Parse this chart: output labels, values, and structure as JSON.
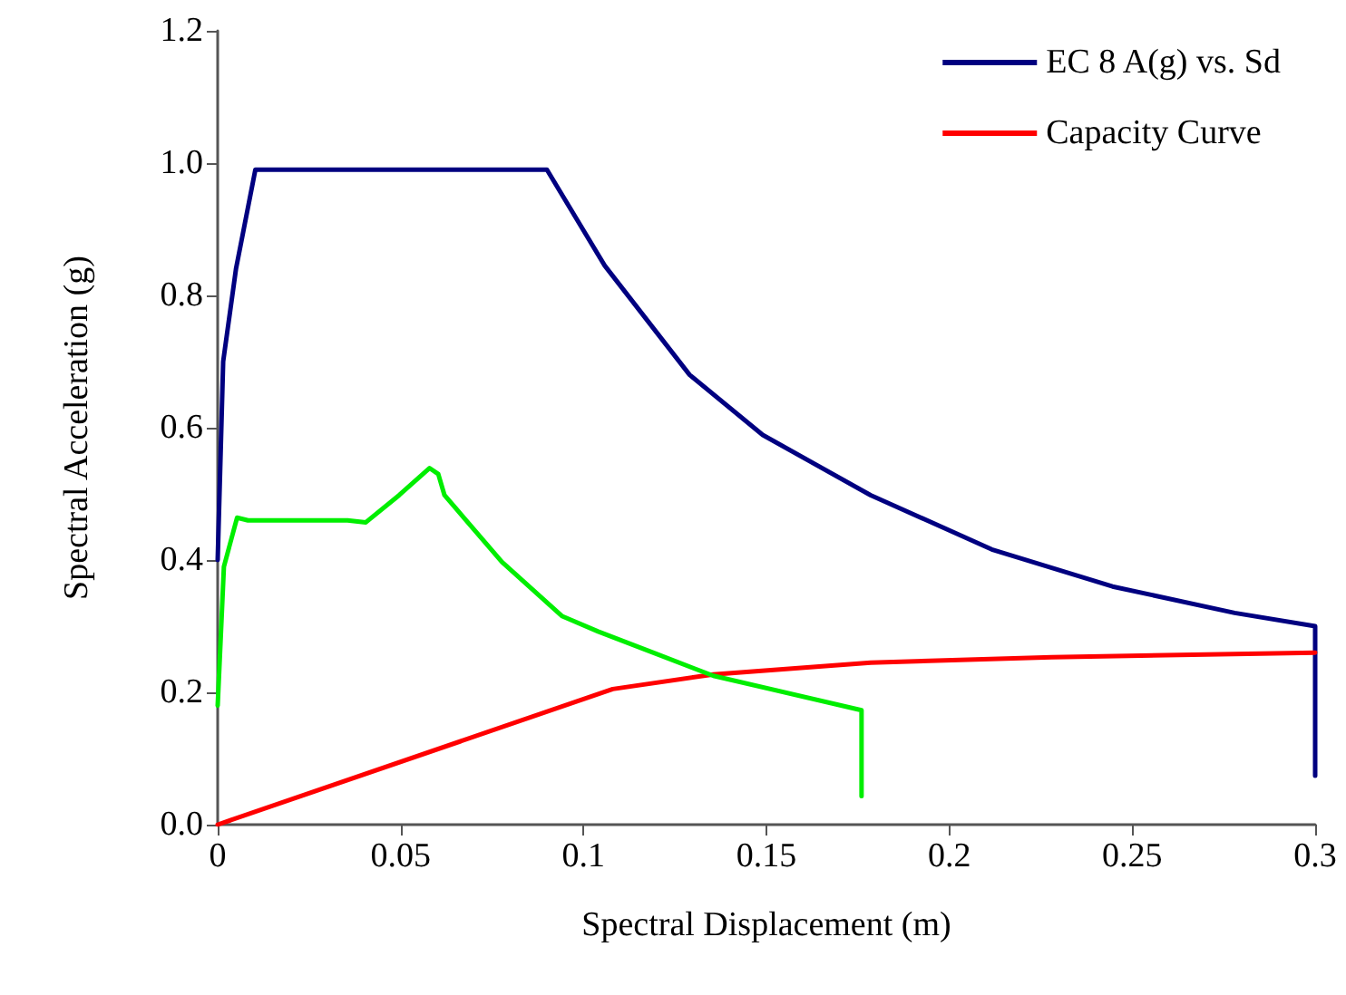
{
  "chart_data": {
    "type": "line",
    "xlabel": "Spectral Displacement (m)",
    "ylabel": "Spectral Acceleration (g)",
    "xlim": [
      0,
      0.3
    ],
    "xticks": [
      0,
      0.05,
      0.1,
      0.15,
      0.2,
      0.25,
      0.3
    ],
    "ylim": [
      0,
      1.2
    ],
    "yticks": [
      {
        "value": 0,
        "label": "0.0"
      },
      {
        "value": 0.2,
        "label": "0.2"
      },
      {
        "value": 0.4,
        "label": "0.4"
      },
      {
        "value": 0.6,
        "label": "0.6"
      },
      {
        "value": 0.8,
        "label": "0.8"
      },
      {
        "value": 1.0,
        "label": "1.0"
      },
      {
        "value": 1.2,
        "label": "1.2"
      }
    ],
    "grid": false,
    "legend": "top right",
    "marker": "none",
    "line_style": "solid",
    "series": [
      {
        "name": "EC 8 A(g) vs. Sd",
        "color": "#000080",
        "x": [
          0,
          0.0015,
          0.005,
          0.0103,
          0.09,
          0.1058,
          0.129,
          0.149,
          0.1785,
          0.2116,
          0.2446,
          0.278,
          0.3,
          0.3
        ],
        "values": [
          0.4,
          0.7,
          0.84,
          0.99,
          0.99,
          0.845,
          0.68,
          0.589,
          0.498,
          0.416,
          0.36,
          0.32,
          0.3,
          0.074
        ]
      },
      {
        "name": "Capacity Curve",
        "color": "#ff0000",
        "x": [
          0,
          0.108,
          0.1355,
          0.1785,
          0.228,
          0.3
        ],
        "values": [
          0,
          0.205,
          0.227,
          0.245,
          0.253,
          0.26
        ]
      },
      {
        "color": "#00ee00",
        "x": [
          0,
          0.0017,
          0.0053,
          0.0083,
          0.0355,
          0.0405,
          0.0496,
          0.0579,
          0.0603,
          0.062,
          0.0777,
          0.0942,
          0.104,
          0.119,
          0.1355,
          0.176,
          0.176
        ],
        "values": [
          0.18,
          0.39,
          0.464,
          0.46,
          0.46,
          0.457,
          0.498,
          0.539,
          0.53,
          0.498,
          0.397,
          0.315,
          0.292,
          0.26,
          0.225,
          0.173,
          0.043
        ]
      }
    ]
  }
}
